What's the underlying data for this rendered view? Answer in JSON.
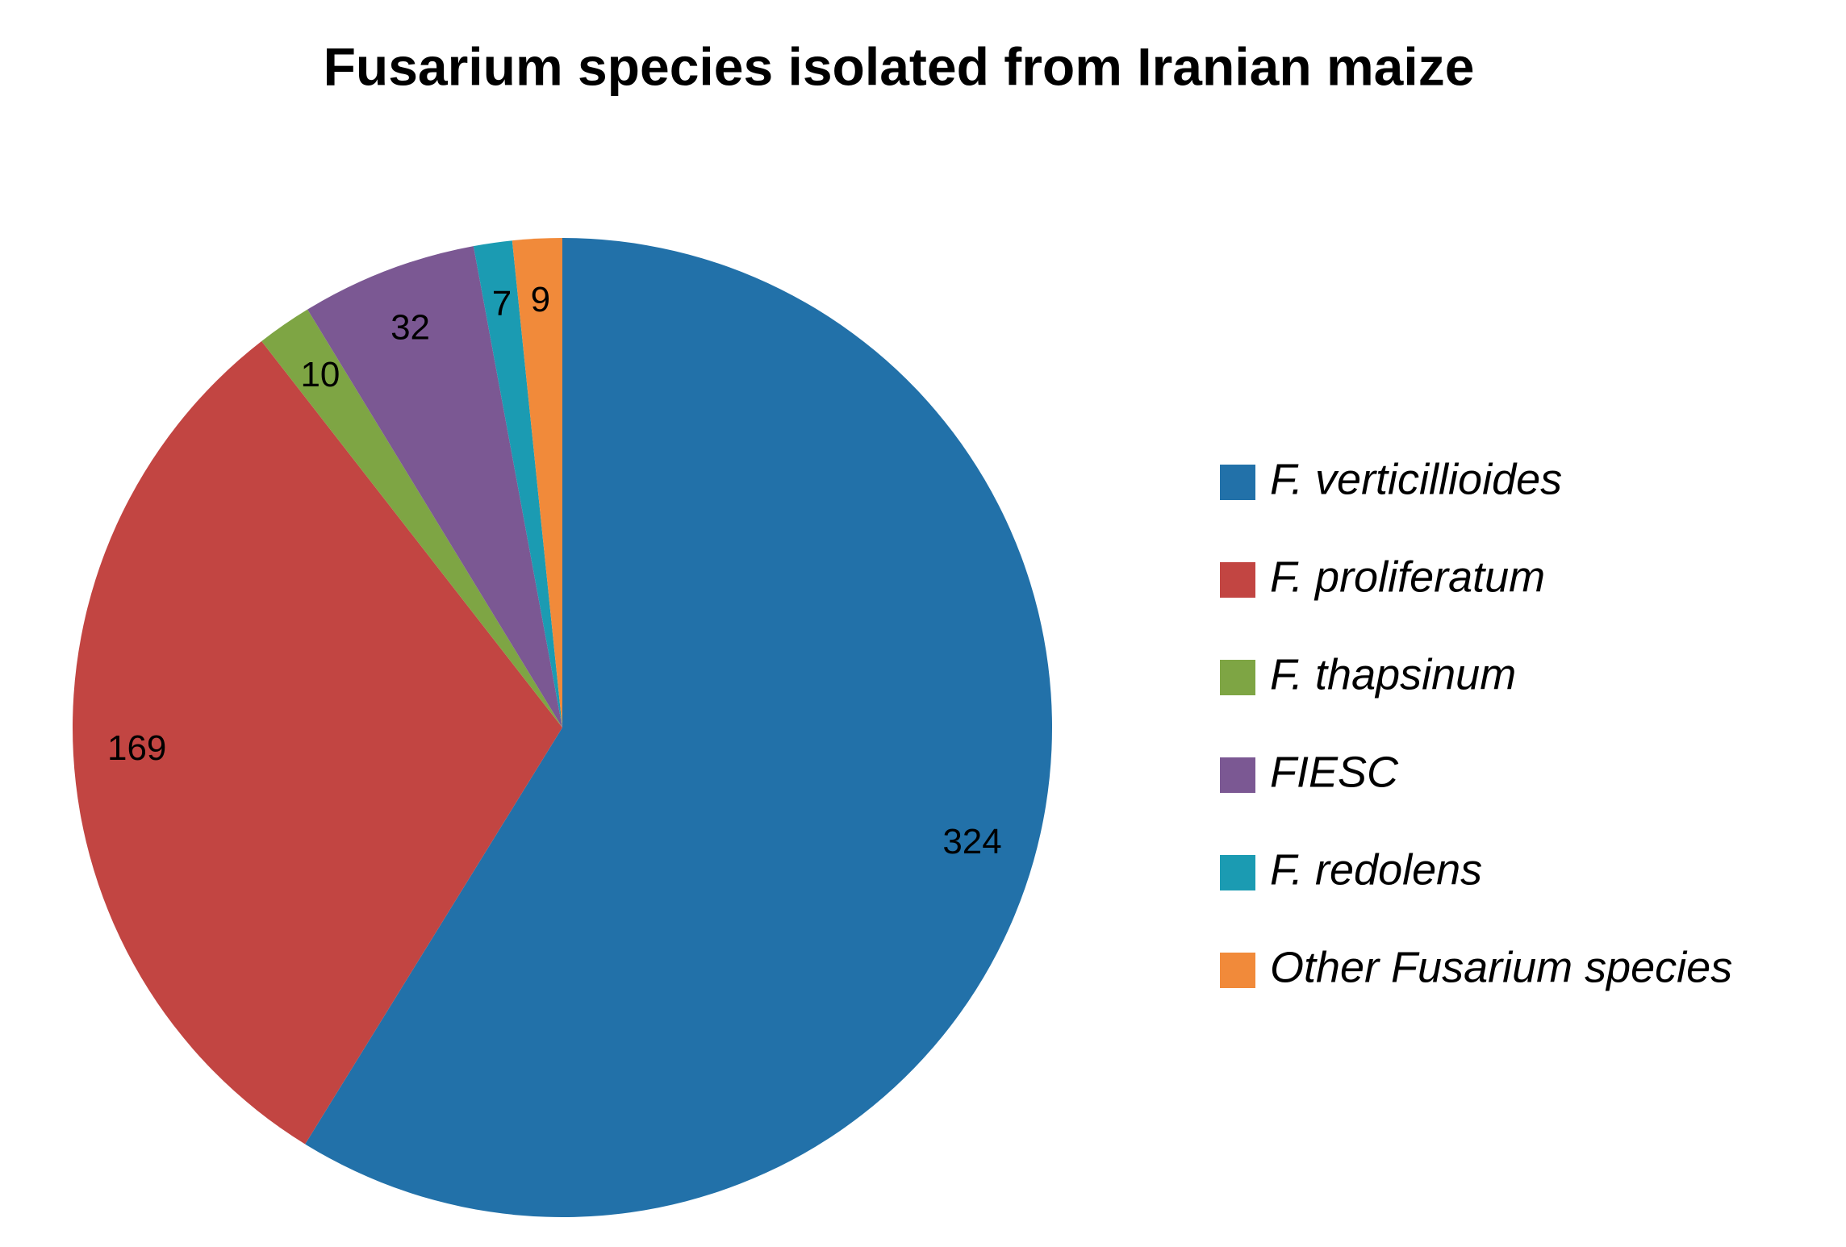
{
  "chart_data": {
    "type": "pie",
    "title": "Fusarium species isolated  from Iranian maize",
    "categories": [
      "F. verticillioides",
      "F. proliferatum",
      "F. thapsinum",
      "FIESC",
      "F. redolens",
      "Other Fusarium species"
    ],
    "values": [
      324,
      169,
      10,
      32,
      7,
      9
    ],
    "colors": [
      "#2271a9",
      "#c24542",
      "#7ea544",
      "#7b5893",
      "#1b9bb2",
      "#f18a3a"
    ],
    "legend": "right"
  }
}
